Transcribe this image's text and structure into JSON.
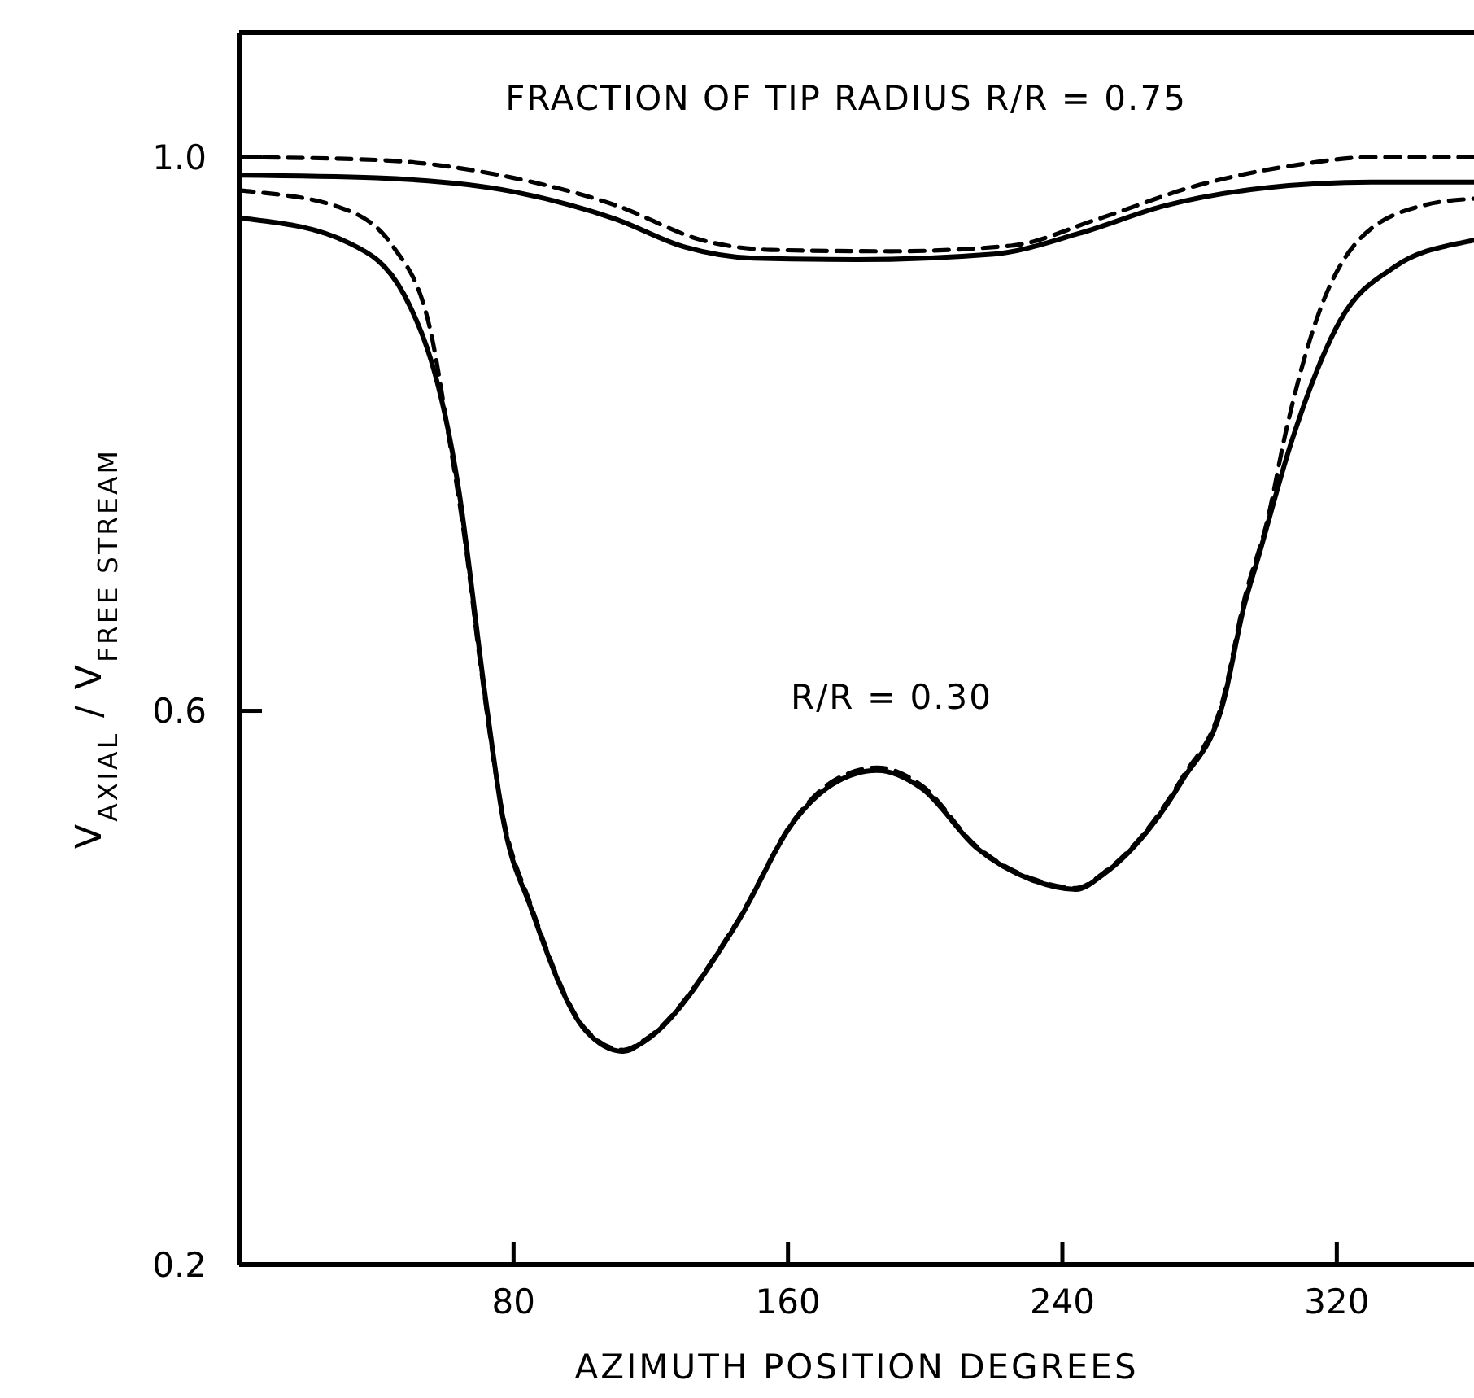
{
  "chart_data": {
    "type": "line",
    "xlabel": "AZIMUTH POSITION DEGREES",
    "ylabel": "V$_{AXIAL}$ / V$_{FREE STREAM}$",
    "xlim": [
      0,
      360
    ],
    "ylim": [
      0.2,
      1.09
    ],
    "xticks": [
      80,
      160,
      240,
      320
    ],
    "yticks": [
      {
        "value": 1.0,
        "label": "1.0"
      },
      {
        "value": 0.6,
        "label": "0.6"
      },
      {
        "value": 0.2,
        "label": "0.2"
      }
    ],
    "grid": false,
    "marker": "none",
    "annotations": [
      "FRACTION OF TIP RADIUS R/R = 0.75",
      "R/R = 0.30"
    ],
    "series": [
      {
        "color": "#000000",
        "line_style": "solid",
        "x": [
          0,
          40,
          80,
          110,
          130,
          150,
          180,
          220,
          245,
          270,
          300,
          330,
          360
        ],
        "values": [
          0.987,
          0.985,
          0.975,
          0.955,
          0.935,
          0.927,
          0.926,
          0.93,
          0.945,
          0.965,
          0.978,
          0.982,
          0.982
        ]
      },
      {
        "color": "#000000",
        "line_style": "dashed",
        "x": [
          0,
          40,
          80,
          110,
          135,
          155,
          190,
          225,
          250,
          280,
          310,
          330,
          360
        ],
        "values": [
          1.0,
          0.998,
          0.985,
          0.965,
          0.94,
          0.933,
          0.932,
          0.936,
          0.955,
          0.98,
          0.995,
          1.0,
          1.0
        ]
      },
      {
        "color": "#000000",
        "line_style": "solid",
        "x": [
          0,
          4,
          32,
          48,
          64,
          72,
          77,
          85,
          101,
          112,
          118,
          145,
          162,
          173,
          186,
          199,
          215,
          231,
          244,
          252,
          275,
          287,
          293,
          297,
          307,
          321,
          337,
          358,
          360
        ],
        "values": [
          0.956,
          0.955,
          0.938,
          0.901,
          0.76,
          0.606,
          0.521,
          0.458,
          0.369,
          0.354,
          0.361,
          0.446,
          0.521,
          0.547,
          0.557,
          0.544,
          0.501,
          0.478,
          0.471,
          0.482,
          0.55,
          0.607,
          0.676,
          0.71,
          0.796,
          0.882,
          0.921,
          0.939,
          0.94
        ]
      },
      {
        "color": "#000000",
        "line_style": "dashed",
        "x": [
          0,
          4,
          29,
          45,
          56,
          61,
          66,
          70,
          77,
          85,
          101,
          112,
          118,
          145,
          162,
          173,
          186,
          199,
          215,
          231,
          244,
          252,
          275,
          287,
          293,
          300,
          305,
          314,
          326,
          345,
          360
        ],
        "values": [
          0.976,
          0.975,
          0.964,
          0.935,
          0.872,
          0.8,
          0.72,
          0.64,
          0.523,
          0.46,
          0.37,
          0.355,
          0.362,
          0.447,
          0.522,
          0.549,
          0.559,
          0.546,
          0.502,
          0.479,
          0.472,
          0.483,
          0.552,
          0.61,
          0.68,
          0.74,
          0.8,
          0.882,
          0.939,
          0.965,
          0.97
        ]
      }
    ]
  }
}
